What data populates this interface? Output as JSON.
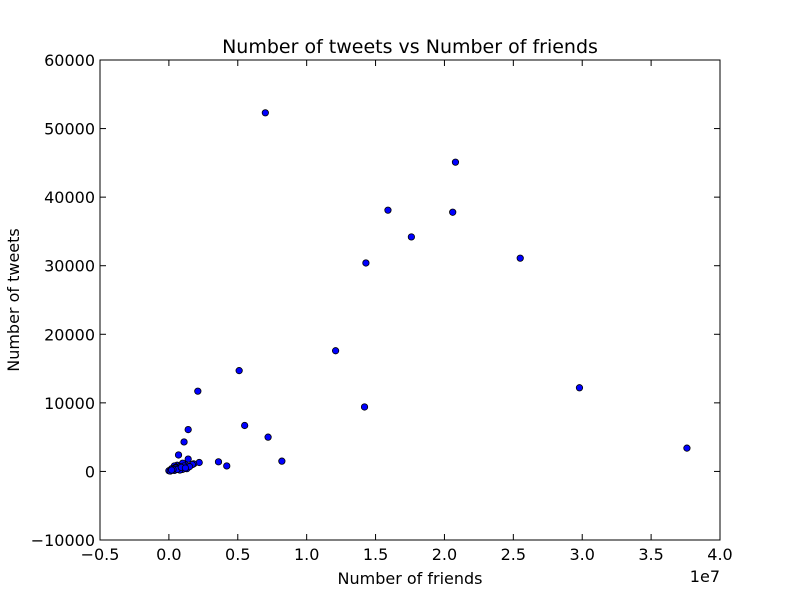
{
  "chart_data": {
    "type": "scatter",
    "title": "Number of tweets vs Number of friends",
    "xlabel": "Number of friends",
    "ylabel": "Number of tweets",
    "x_offset_label": "1e7",
    "xlim": [
      -0.5,
      4.0
    ],
    "ylim": [
      -10000,
      60000
    ],
    "x_ticks": [
      -0.5,
      0.0,
      0.5,
      1.0,
      1.5,
      2.0,
      2.5,
      3.0,
      3.5,
      4.0
    ],
    "x_tick_labels": [
      "−0.5",
      "0.0",
      "0.5",
      "1.0",
      "1.5",
      "2.0",
      "2.5",
      "3.0",
      "3.5",
      "4.0"
    ],
    "y_ticks": [
      -10000,
      0,
      10000,
      20000,
      30000,
      40000,
      50000,
      60000
    ],
    "y_tick_labels": [
      "−10000",
      "0",
      "10000",
      "20000",
      "30000",
      "40000",
      "50000",
      "60000"
    ],
    "grid": false,
    "legend": "none",
    "marker_color": "#0000ff",
    "marker_edge_color": "#000000",
    "series": [
      {
        "x": [
          0.7,
          2.08,
          1.59,
          2.06,
          1.76,
          2.55,
          1.43,
          1.21,
          2.98,
          0.51,
          0.21,
          1.42,
          0.55,
          0.72,
          3.76,
          0.14,
          0.11,
          0.07,
          0.36,
          0.82,
          0.14,
          0.42,
          0.22,
          0.18,
          0.12,
          0.1,
          0.14,
          0.06,
          0.08,
          0.13,
          0.17,
          0.09,
          0.04,
          0.02,
          0.05,
          0.03,
          0.07,
          0.1,
          0.15,
          0.11,
          0.08,
          0.05,
          0.02,
          0.01,
          0.04,
          0.06,
          0.09,
          0.12,
          0.03,
          0.0,
          0.01,
          0.02
        ],
        "y": [
          52300,
          45100,
          38100,
          37800,
          34200,
          31100,
          30400,
          17600,
          12200,
          14700,
          11700,
          9400,
          6700,
          5000,
          3400,
          6100,
          4300,
          2400,
          1400,
          1500,
          1800,
          800,
          1300,
          1100,
          1000,
          1200,
          600,
          900,
          700,
          400,
          1000,
          500,
          800,
          300,
          600,
          200,
          400,
          300,
          700,
          800,
          200,
          500,
          400,
          100,
          150,
          300,
          600,
          500,
          300,
          100,
          50,
          200
        ]
      }
    ]
  }
}
